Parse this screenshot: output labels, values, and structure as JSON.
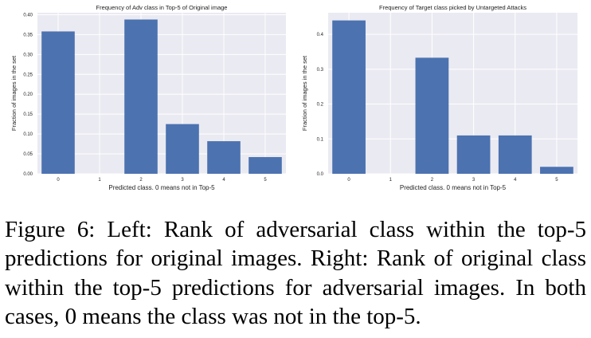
{
  "chart_data": [
    {
      "type": "bar",
      "title": "Frequency of Adv class in Top-5 of Original image",
      "xlabel": "Predicted class. 0 means not in Top-5",
      "ylabel": "Fraction of images in the set",
      "categories": [
        "0",
        "1",
        "2",
        "3",
        "4",
        "5"
      ],
      "values": [
        0.358,
        0.0,
        0.388,
        0.125,
        0.082,
        0.042
      ],
      "ylim": [
        0,
        0.405
      ],
      "yticks": [
        "0.00",
        "0.05",
        "0.10",
        "0.15",
        "0.20",
        "0.25",
        "0.30",
        "0.35",
        "0.40"
      ],
      "grid": true
    },
    {
      "type": "bar",
      "title": "Frequency of Target class picked by Untargeted Attacks",
      "xlabel": "Predicted class. 0 means not in Top-5",
      "ylabel": "Fraction of images in the set",
      "categories": [
        "0",
        "1",
        "2",
        "3",
        "4",
        "5"
      ],
      "values": [
        0.44,
        0.0,
        0.333,
        0.11,
        0.11,
        0.02
      ],
      "ylim": [
        0,
        0.462
      ],
      "yticks": [
        "0.0",
        "0.1",
        "0.2",
        "0.3",
        "0.4"
      ],
      "grid": true
    }
  ],
  "colors": {
    "bar": "#4c72b0",
    "plot_bg": "#eaeaf2",
    "grid": "#ffffff"
  },
  "caption": "Figure 6: Left: Rank of adversarial class within the top-5 predictions for original images. Right: Rank of original class within the top-5 predictions for adversarial images. In both cases, 0 means the class was not in the top-5."
}
